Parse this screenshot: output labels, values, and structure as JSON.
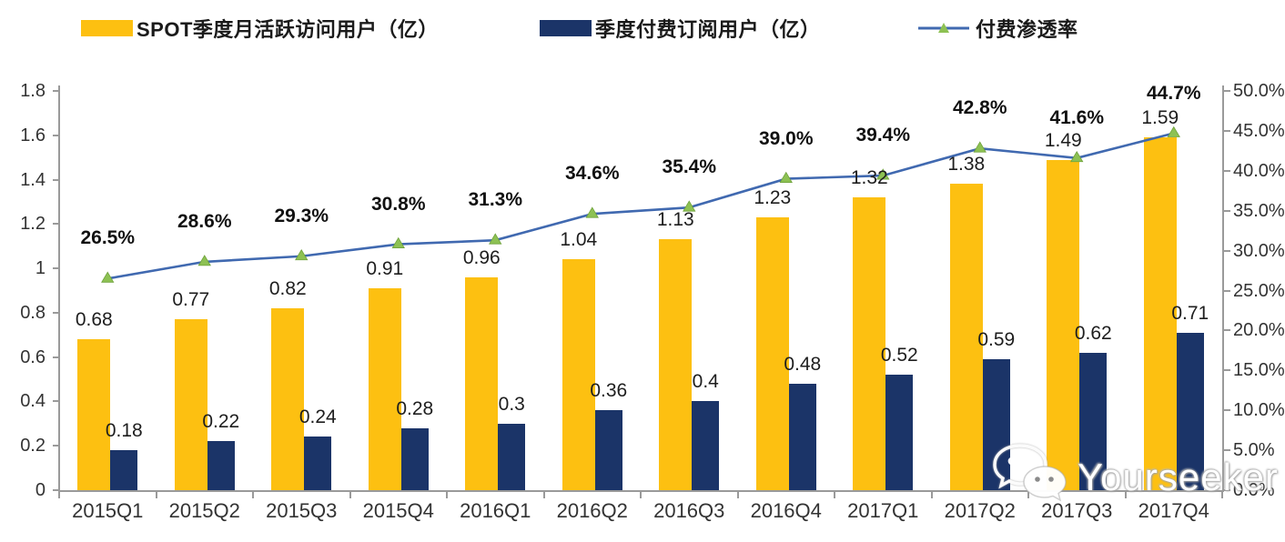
{
  "legend": [
    {
      "label": "SPOT季度月活跃访问用户（亿）",
      "color": "#FDC011",
      "type": "bar"
    },
    {
      "label": "季度付费订阅用户（亿）",
      "color": "#1B3468",
      "type": "bar"
    },
    {
      "label": "付费渗透率",
      "color": "#4069B0",
      "marker_color": "#8DC153",
      "type": "line"
    }
  ],
  "chart_data": {
    "type": "combo-grouped-bar-line",
    "categories": [
      "2015Q1",
      "2015Q2",
      "2015Q3",
      "2015Q4",
      "2016Q1",
      "2016Q2",
      "2016Q3",
      "2016Q4",
      "2017Q1",
      "2017Q2",
      "2017Q3",
      "2017Q4"
    ],
    "series": [
      {
        "name": "SPOT季度月活跃访问用户（亿）",
        "type": "bar",
        "axis": "left",
        "color": "#FDC011",
        "values": [
          0.68,
          0.77,
          0.82,
          0.91,
          0.96,
          1.04,
          1.13,
          1.23,
          1.32,
          1.38,
          1.49,
          1.59
        ],
        "labels": [
          "0.68",
          "0.77",
          "0.82",
          "0.91",
          "0.96",
          "1.04",
          "1.13",
          "1.23",
          "1.32",
          "1.38",
          "1.49",
          "1.59"
        ]
      },
      {
        "name": "季度付费订阅用户（亿）",
        "type": "bar",
        "axis": "left",
        "color": "#1B3468",
        "values": [
          0.18,
          0.22,
          0.24,
          0.28,
          0.3,
          0.36,
          0.4,
          0.48,
          0.52,
          0.59,
          0.62,
          0.71
        ],
        "labels": [
          "0.18",
          "0.22",
          "0.24",
          "0.28",
          "0.3",
          "0.36",
          "0.4",
          "0.48",
          "0.52",
          "0.59",
          "0.62",
          "0.71"
        ]
      },
      {
        "name": "付费渗透率",
        "type": "line",
        "axis": "right",
        "color": "#4069B0",
        "marker": "triangle",
        "marker_color": "#8DC153",
        "values": [
          26.5,
          28.6,
          29.3,
          30.8,
          31.3,
          34.6,
          35.4,
          39.0,
          39.4,
          42.8,
          41.6,
          44.7
        ],
        "labels": [
          "26.5%",
          "28.6%",
          "29.3%",
          "30.8%",
          "31.3%",
          "34.6%",
          "35.4%",
          "39.0%",
          "39.4%",
          "42.8%",
          "41.6%",
          "44.7%"
        ]
      }
    ],
    "left_axis": {
      "min": 0,
      "max": 1.8,
      "step": 0.2,
      "ticks": [
        "0",
        "0.2",
        "0.4",
        "0.6",
        "0.8",
        "1",
        "1.2",
        "1.4",
        "1.6",
        "1.8"
      ]
    },
    "right_axis": {
      "min": 0,
      "max": 50,
      "step": 5,
      "ticks": [
        "0.0%",
        "5.0%",
        "10.0%",
        "15.0%",
        "20.0%",
        "25.0%",
        "30.0%",
        "35.0%",
        "40.0%",
        "45.0%",
        "50.0%"
      ]
    },
    "grid": false,
    "legend_position": "top"
  },
  "watermark": {
    "text": "Yourseeker",
    "icon": "wechat-icon"
  }
}
